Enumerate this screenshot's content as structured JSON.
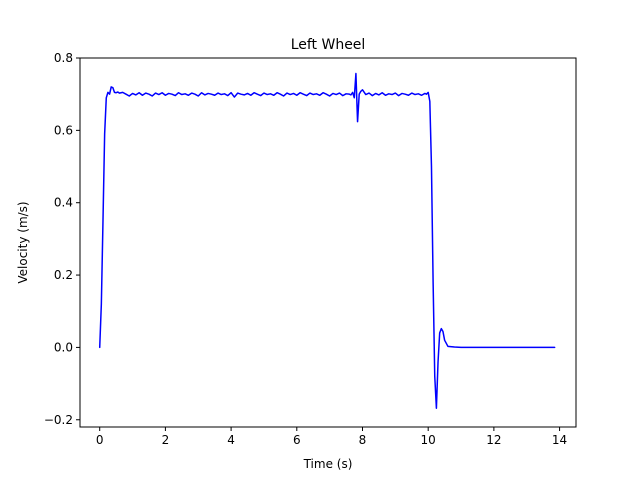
{
  "chart_data": {
    "type": "line",
    "title": "Left Wheel",
    "xlabel": "Time (s)",
    "ylabel": "Velocity (m/s)",
    "xlim": [
      -0.6,
      14.5
    ],
    "ylim": [
      -0.22,
      0.8
    ],
    "xticks": [
      0,
      2,
      4,
      6,
      8,
      10,
      12,
      14
    ],
    "xtick_labels": [
      "0",
      "2",
      "4",
      "6",
      "8",
      "10",
      "12",
      "14"
    ],
    "yticks": [
      -0.2,
      0.0,
      0.2,
      0.4,
      0.6,
      0.8
    ],
    "ytick_labels": [
      "−0.2",
      "0.0",
      "0.2",
      "0.4",
      "0.6",
      "0.8"
    ],
    "grid": false,
    "series": [
      {
        "color": "#0000ff",
        "x": [
          0.0,
          0.05,
          0.1,
          0.15,
          0.2,
          0.25,
          0.3,
          0.35,
          0.4,
          0.45,
          0.5,
          0.55,
          0.6,
          0.7,
          0.8,
          0.9,
          1.0,
          1.1,
          1.2,
          1.3,
          1.4,
          1.5,
          1.6,
          1.7,
          1.8,
          1.9,
          2.0,
          2.1,
          2.2,
          2.3,
          2.4,
          2.5,
          2.6,
          2.7,
          2.8,
          2.9,
          3.0,
          3.1,
          3.2,
          3.3,
          3.4,
          3.5,
          3.6,
          3.7,
          3.8,
          3.9,
          4.0,
          4.1,
          4.2,
          4.3,
          4.4,
          4.5,
          4.6,
          4.7,
          4.8,
          4.9,
          5.0,
          5.1,
          5.2,
          5.3,
          5.4,
          5.5,
          5.6,
          5.7,
          5.8,
          5.9,
          6.0,
          6.1,
          6.2,
          6.3,
          6.4,
          6.5,
          6.6,
          6.7,
          6.8,
          6.9,
          7.0,
          7.1,
          7.2,
          7.3,
          7.4,
          7.5,
          7.6,
          7.65,
          7.7,
          7.75,
          7.8,
          7.85,
          7.9,
          7.95,
          8.0,
          8.1,
          8.2,
          8.3,
          8.4,
          8.5,
          8.6,
          8.7,
          8.8,
          8.9,
          9.0,
          9.1,
          9.2,
          9.3,
          9.4,
          9.5,
          9.6,
          9.7,
          9.8,
          9.9,
          9.95,
          10.0,
          10.05,
          10.1,
          10.15,
          10.2,
          10.25,
          10.3,
          10.35,
          10.4,
          10.45,
          10.5,
          10.6,
          10.8,
          11.0,
          11.5,
          12.0,
          12.5,
          13.0,
          13.5,
          13.85
        ],
        "y": [
          0.0,
          0.12,
          0.35,
          0.59,
          0.69,
          0.705,
          0.7,
          0.72,
          0.718,
          0.705,
          0.704,
          0.706,
          0.703,
          0.705,
          0.7,
          0.695,
          0.702,
          0.698,
          0.704,
          0.697,
          0.703,
          0.7,
          0.695,
          0.703,
          0.699,
          0.704,
          0.697,
          0.702,
          0.7,
          0.696,
          0.704,
          0.699,
          0.701,
          0.697,
          0.703,
          0.7,
          0.695,
          0.704,
          0.698,
          0.702,
          0.7,
          0.697,
          0.703,
          0.699,
          0.701,
          0.696,
          0.704,
          0.692,
          0.703,
          0.7,
          0.698,
          0.702,
          0.697,
          0.704,
          0.7,
          0.696,
          0.703,
          0.699,
          0.701,
          0.697,
          0.704,
          0.7,
          0.695,
          0.703,
          0.699,
          0.702,
          0.697,
          0.704,
          0.7,
          0.696,
          0.703,
          0.699,
          0.701,
          0.697,
          0.704,
          0.7,
          0.695,
          0.702,
          0.699,
          0.703,
          0.696,
          0.701,
          0.7,
          0.698,
          0.705,
          0.69,
          0.757,
          0.624,
          0.7,
          0.708,
          0.712,
          0.699,
          0.703,
          0.696,
          0.702,
          0.698,
          0.704,
          0.697,
          0.701,
          0.699,
          0.703,
          0.696,
          0.702,
          0.7,
          0.697,
          0.703,
          0.699,
          0.701,
          0.697,
          0.702,
          0.7,
          0.705,
          0.68,
          0.5,
          0.18,
          -0.08,
          -0.168,
          -0.04,
          0.04,
          0.052,
          0.044,
          0.02,
          0.003,
          0.001,
          0.0,
          0.0,
          0.0,
          0.0,
          0.0,
          0.0,
          0.0
        ]
      }
    ]
  }
}
